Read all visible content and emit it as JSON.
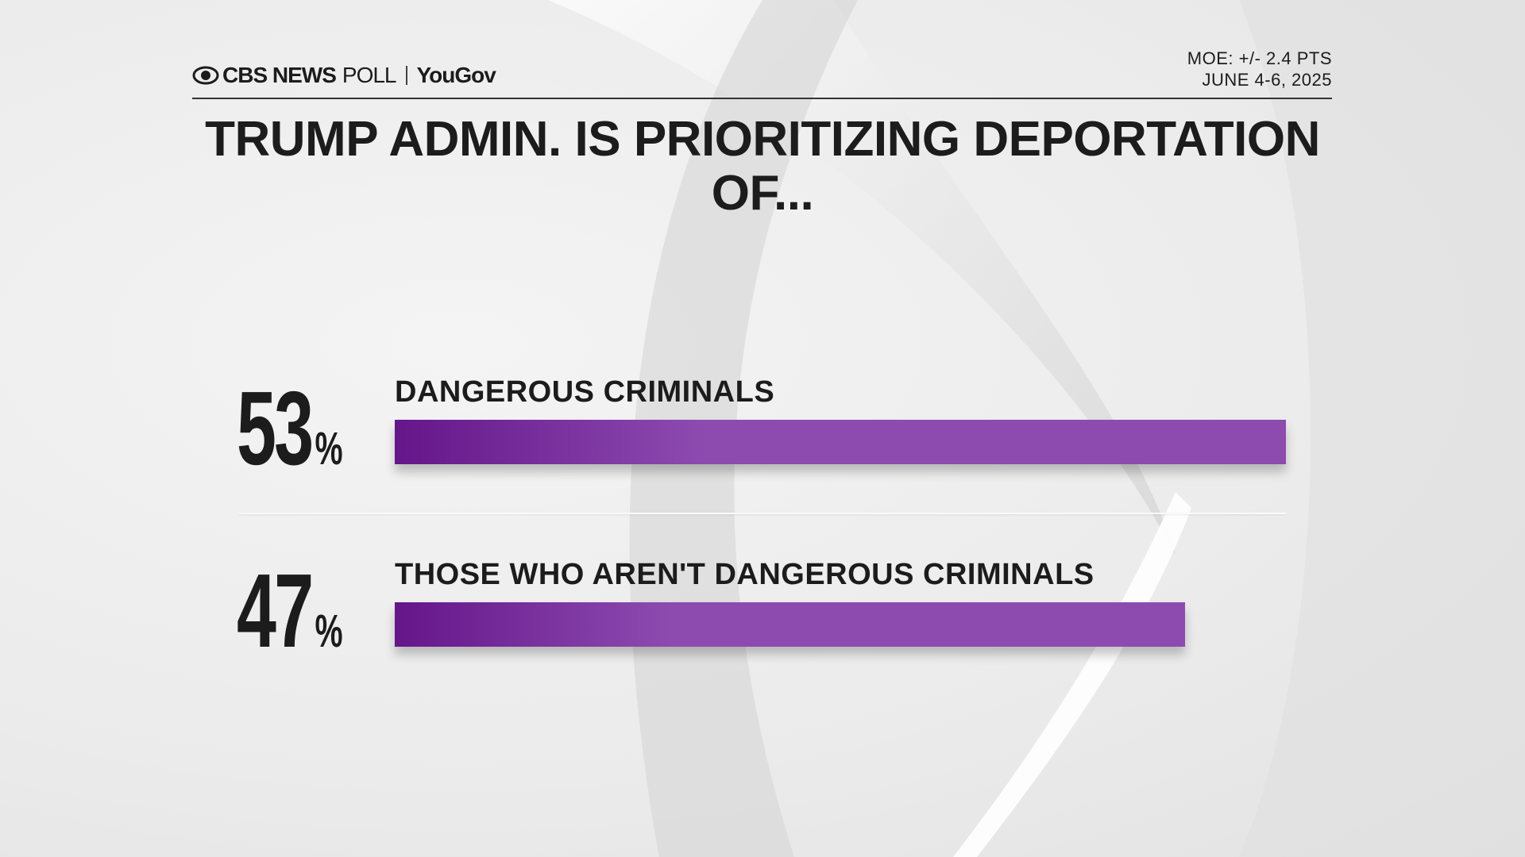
{
  "header": {
    "brand": "CBS NEWS",
    "brand_suffix": "POLL",
    "partner": "YouGov",
    "moe": "MOE: +/- 2.4 PTS",
    "dates": "JUNE 4-6, 2025"
  },
  "chart_data": {
    "type": "bar",
    "orientation": "horizontal",
    "title": "TRUMP ADMIN. IS PRIORITIZING DEPORTATION OF...",
    "categories": [
      "DANGEROUS CRIMINALS",
      "THOSE WHO AREN'T DANGEROUS CRIMINALS"
    ],
    "values": [
      53,
      47
    ],
    "value_labels": [
      "53%",
      "47%"
    ],
    "color": "#8d4bb0"
  }
}
